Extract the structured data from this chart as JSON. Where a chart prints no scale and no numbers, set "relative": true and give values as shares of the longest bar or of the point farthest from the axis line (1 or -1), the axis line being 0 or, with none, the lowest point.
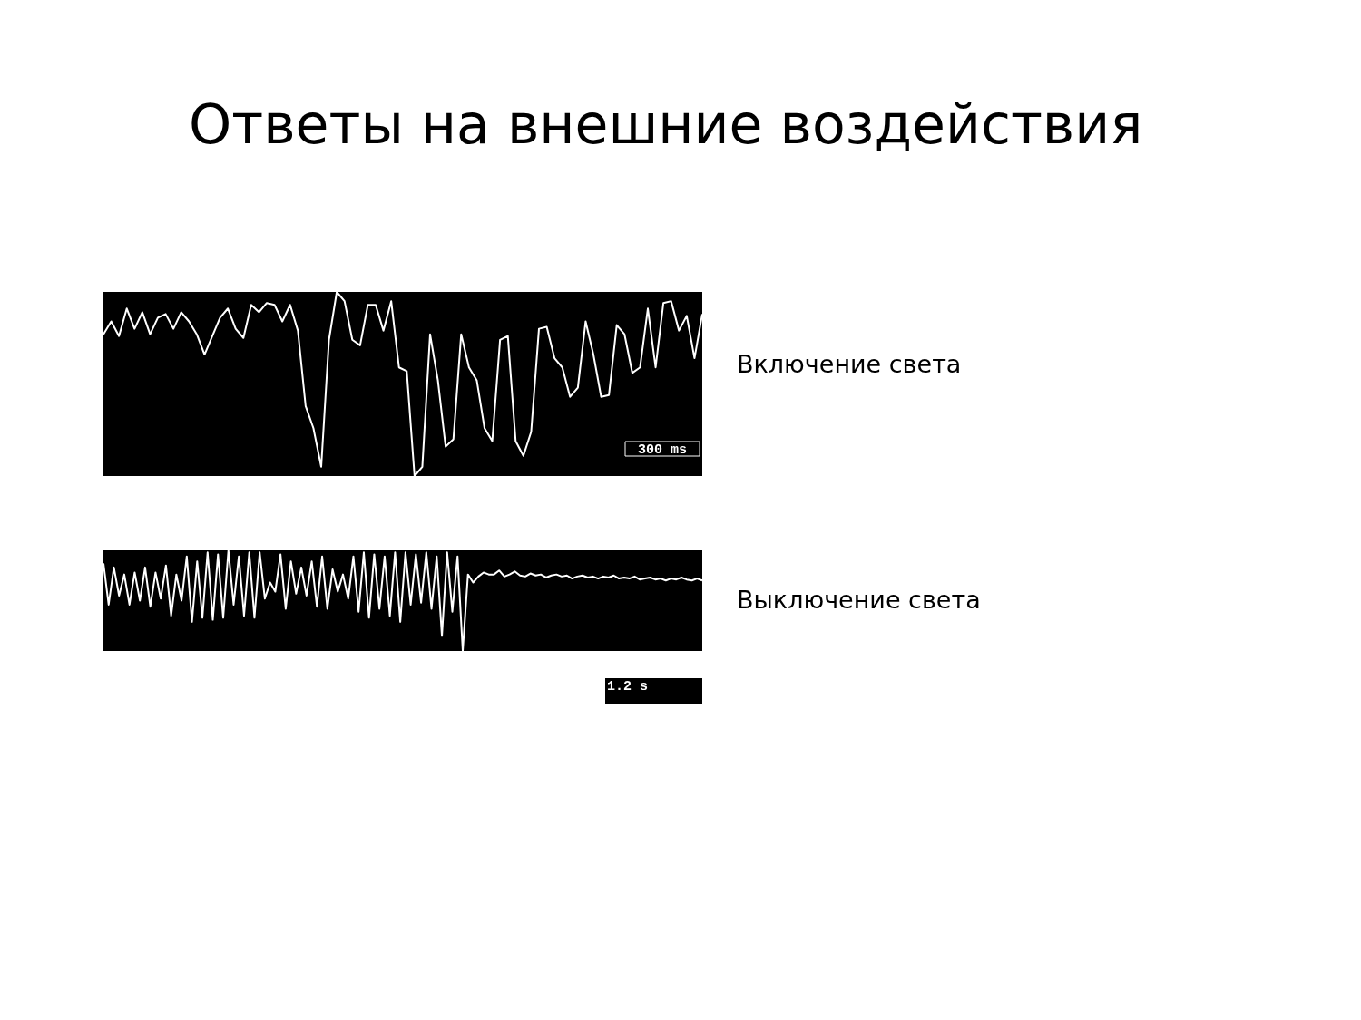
{
  "chart_data": [
    {
      "type": "line",
      "title": "Ответы на внешние воздействия",
      "relative": true,
      "annotations": [
        "Включение света",
        "300 ms"
      ],
      "categories": [
        null,
        null,
        null,
        null,
        null,
        null,
        null,
        null,
        null,
        null,
        null,
        null,
        null,
        null,
        null,
        null,
        null,
        null,
        null,
        null,
        null,
        null,
        null,
        null,
        null,
        null,
        null,
        null,
        null,
        null,
        null,
        null,
        null,
        null,
        null,
        null,
        null,
        null,
        null,
        null,
        null,
        null,
        null,
        null,
        null,
        null,
        null,
        null,
        null,
        null,
        null,
        null,
        null,
        null,
        null,
        null,
        null,
        null,
        null,
        null,
        null,
        null,
        null,
        null,
        null,
        null,
        null,
        null,
        null,
        null,
        null,
        null,
        null,
        null,
        null,
        null,
        null,
        null
      ],
      "series": [
        {
          "color": "#ffffff",
          "values": [
            0.77,
            0.84,
            0.76,
            0.91,
            0.8,
            0.89,
            0.77,
            0.86,
            0.88,
            0.8,
            0.89,
            0.84,
            0.77,
            0.66,
            0.76,
            0.86,
            0.91,
            0.8,
            0.75,
            0.93,
            0.89,
            0.94,
            0.93,
            0.84,
            0.93,
            0.79,
            0.38,
            0.26,
            0.05,
            0.74,
            1.0,
            0.95,
            0.74,
            0.71,
            0.93,
            0.93,
            0.79,
            0.95,
            0.59,
            0.57,
            0,
            0.05,
            0.77,
            0.52,
            0.16,
            0.2,
            0.77,
            0.59,
            0.52,
            0.26,
            0.19,
            0.74,
            0.76,
            0.19,
            0.11,
            0.24,
            0.8,
            0.81,
            0.64,
            0.59,
            0.43,
            0.48,
            0.84,
            0.66,
            0.43,
            0.44,
            0.82,
            0.77,
            0.56,
            0.59,
            0.91,
            0.59,
            0.94,
            0.95,
            0.79,
            0.87,
            0.64,
            0.88
          ]
        }
      ]
    },
    {
      "type": "line",
      "relative": true,
      "annotations": [
        "Выключение света",
        "1.2 s"
      ],
      "categories": [
        null,
        null,
        null,
        null,
        null,
        null,
        null,
        null,
        null,
        null,
        null,
        null,
        null,
        null,
        null,
        null,
        null,
        null,
        null,
        null,
        null,
        null,
        null,
        null,
        null,
        null,
        null,
        null,
        null,
        null,
        null,
        null,
        null,
        null,
        null,
        null,
        null,
        null,
        null,
        null,
        null,
        null,
        null,
        null,
        null,
        null,
        null,
        null,
        null,
        null,
        null,
        null,
        null,
        null,
        null,
        null,
        null,
        null,
        null,
        null,
        null,
        null,
        null,
        null,
        null,
        null,
        null,
        null,
        null,
        null,
        null,
        null,
        null,
        null,
        null,
        null,
        null,
        null,
        null,
        null,
        null,
        null,
        null,
        null,
        null,
        null,
        null,
        null,
        null,
        null,
        null,
        null,
        null,
        null,
        null,
        null,
        null,
        null,
        null,
        null,
        null,
        null,
        null,
        null,
        null,
        null,
        null,
        null,
        null,
        null,
        null,
        null,
        null,
        null,
        null,
        null
      ],
      "series": [
        {
          "color": "#ffffff",
          "values": [
            0.87,
            0.46,
            0.83,
            0.55,
            0.76,
            0.46,
            0.78,
            0.5,
            0.83,
            0.44,
            0.78,
            0.52,
            0.85,
            0.35,
            0.76,
            0.5,
            0.94,
            0.29,
            0.89,
            0.33,
            0.98,
            0.31,
            0.96,
            0.33,
            1.0,
            0.46,
            0.94,
            0.35,
            0.98,
            0.33,
            0.98,
            0.52,
            0.68,
            0.59,
            0.96,
            0.42,
            0.89,
            0.57,
            0.83,
            0.55,
            0.89,
            0.44,
            0.94,
            0.42,
            0.81,
            0.59,
            0.76,
            0.52,
            0.94,
            0.39,
            0.98,
            0.33,
            0.96,
            0.42,
            0.94,
            0.35,
            0.98,
            0.29,
            0.98,
            0.46,
            0.96,
            0.48,
            0.98,
            0.42,
            0.94,
            0.15,
            0.98,
            0.39,
            0.94,
            0,
            0.76,
            0.68,
            0.74,
            0.78,
            0.76,
            0.76,
            0.8,
            0.74,
            0.76,
            0.79,
            0.75,
            0.74,
            0.77,
            0.75,
            0.76,
            0.73,
            0.75,
            0.76,
            0.74,
            0.75,
            0.72,
            0.74,
            0.75,
            0.73,
            0.74,
            0.72,
            0.74,
            0.73,
            0.75,
            0.72,
            0.73,
            0.72,
            0.74,
            0.71,
            0.72,
            0.73,
            0.71,
            0.72,
            0.7,
            0.72,
            0.71,
            0.73,
            0.71,
            0.7,
            0.72,
            0.7
          ]
        }
      ]
    }
  ]
}
